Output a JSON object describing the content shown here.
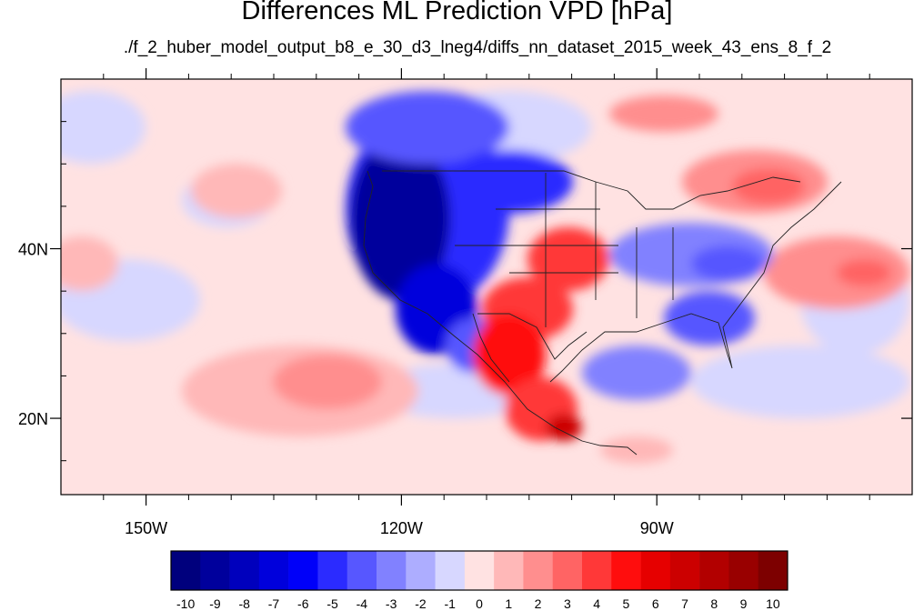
{
  "title": "Differences ML Prediction VPD [hPa]",
  "subtitle": "./f_2_huber_model_output_b8_e_30_d3_lneg4/diffs_nn_dataset_2015_week_43_ens_8_f_2",
  "axes": {
    "x_ticks": [
      {
        "label": "150W",
        "lon": -150
      },
      {
        "label": "120W",
        "lon": -120
      },
      {
        "label": "90W",
        "lon": -90
      }
    ],
    "y_ticks": [
      {
        "label": "40N",
        "lat": 40
      },
      {
        "label": "20N",
        "lat": 20
      }
    ],
    "lon_range": [
      -160,
      -60
    ],
    "lat_range": [
      11,
      60
    ]
  },
  "colorbar": {
    "labels": [
      "-10",
      "-9",
      "-8",
      "-7",
      "-6",
      "-5",
      "-4",
      "-3",
      "-2",
      "-1",
      "0",
      "1",
      "2",
      "3",
      "4",
      "5",
      "6",
      "7",
      "8",
      "9",
      "10"
    ],
    "colors": [
      "#00007d",
      "#00009c",
      "#0000bd",
      "#0000dc",
      "#0000f9",
      "#2b2bff",
      "#5757ff",
      "#8181ff",
      "#adadff",
      "#d7d7ff",
      "#ffe2e2",
      "#ffb8b8",
      "#ff8e8e",
      "#ff6464",
      "#ff3838",
      "#ff0d0d",
      "#e60000",
      "#cc0000",
      "#b20000",
      "#990000",
      "#7d0000"
    ]
  }
}
